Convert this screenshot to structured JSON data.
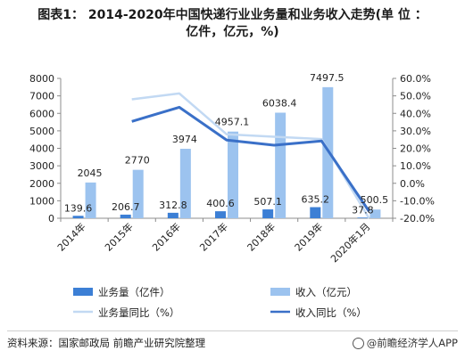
{
  "title_line1": "图表1： 2014-2020年中国快递行业业务量和业务收入走势(单 位 ：",
  "title_line2": "亿件，亿元，%)",
  "footer": {
    "source": "资料来源：国家邮政局 前瞻产业研究院整理",
    "brand": "@前瞻经济学人APP"
  },
  "chart_data": {
    "type": "bar",
    "categories": [
      "2014年",
      "2015年",
      "2016年",
      "2017年",
      "2018年",
      "2019年",
      "2020年1月"
    ],
    "series": [
      {
        "name": "业务量（亿件）",
        "kind": "bar",
        "axis": "left",
        "color": "#3c7fd5",
        "values": [
          139.6,
          206.7,
          312.8,
          400.6,
          507.1,
          635.2,
          37.8
        ],
        "labels": [
          "139.6",
          "206.7",
          "312.8",
          "400.6",
          "507.1",
          "635.2",
          "37.8"
        ]
      },
      {
        "name": "收入（亿元）",
        "kind": "bar",
        "axis": "left",
        "color": "#9cc3ef",
        "values": [
          2045,
          2770,
          3974,
          4957.1,
          6038.4,
          7497.5,
          500.5
        ],
        "labels": [
          "2045",
          "2770",
          "3974",
          "4957.1",
          "6038.4",
          "7497.5",
          "500.5"
        ]
      },
      {
        "name": "业务量同比（%）",
        "kind": "line",
        "axis": "right",
        "color": "#c2d9f3",
        "values": [
          null,
          48,
          51.4,
          28,
          26.6,
          25.3,
          -20
        ]
      },
      {
        "name": "收入同比（%）",
        "kind": "line",
        "axis": "right",
        "color": "#3a70c8",
        "values": [
          null,
          35.4,
          43.5,
          24.7,
          21.8,
          24.2,
          -16
        ]
      }
    ],
    "y_left": {
      "min": 0,
      "max": 8000,
      "ticks": [
        "0",
        "1000",
        "2000",
        "3000",
        "4000",
        "5000",
        "6000",
        "7000",
        "8000"
      ]
    },
    "y_right": {
      "min": -20,
      "max": 60,
      "ticks": [
        "-20.0%",
        "-10.0%",
        "0.0%",
        "10.0%",
        "20.0%",
        "30.0%",
        "40.0%",
        "50.0%",
        "60.0%"
      ]
    },
    "grid": false,
    "legend": "bottom"
  }
}
